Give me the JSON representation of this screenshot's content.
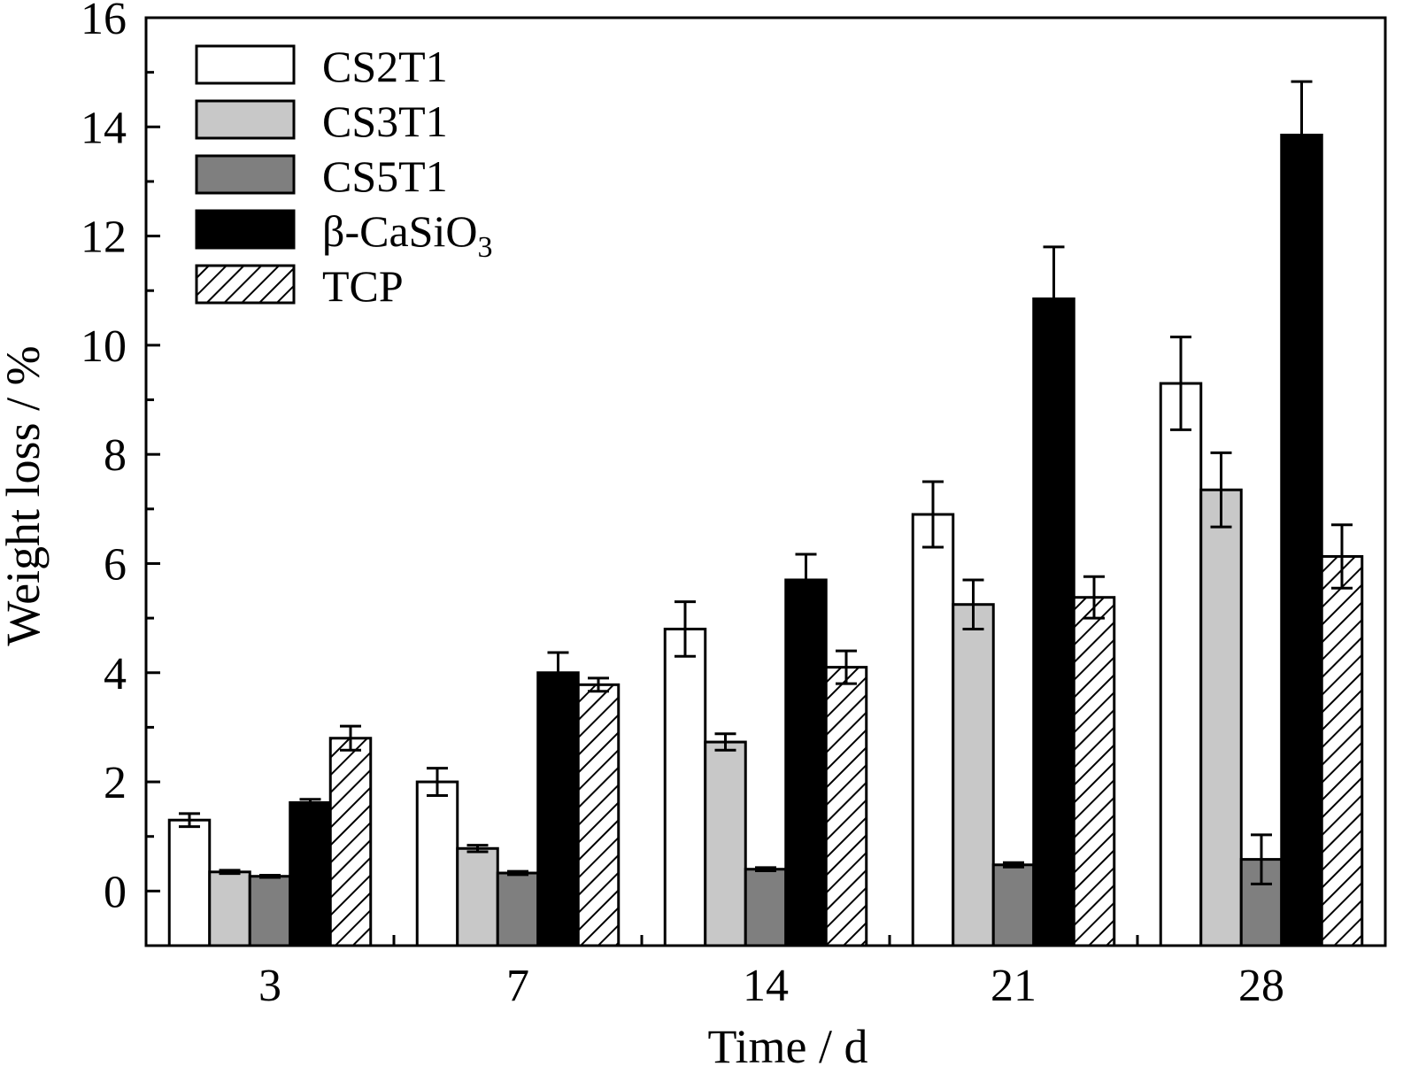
{
  "chart_data": {
    "type": "bar",
    "xlabel": "Time / d",
    "ylabel": "Weight loss / %",
    "ylim": [
      -1,
      16
    ],
    "yticks": [
      0,
      2,
      4,
      6,
      8,
      10,
      12,
      14,
      16
    ],
    "yminor": [
      -1,
      1,
      3,
      5,
      7,
      9,
      11,
      13,
      15
    ],
    "categories": [
      "3",
      "7",
      "14",
      "21",
      "28"
    ],
    "legend_position": "top-left",
    "series": [
      {
        "name": "CS2T1",
        "fill": "#ffffff",
        "pattern": "none",
        "values": [
          1.3,
          2.0,
          4.8,
          6.9,
          9.3
        ],
        "errors": [
          0.12,
          0.25,
          0.5,
          0.6,
          0.85
        ]
      },
      {
        "name": "CS3T1",
        "fill": "#c8c8c8",
        "pattern": "none",
        "values": [
          0.35,
          0.78,
          2.73,
          5.25,
          7.35
        ],
        "errors": [
          0.03,
          0.06,
          0.15,
          0.45,
          0.68
        ]
      },
      {
        "name": "CS5T1",
        "fill": "#7f7f7f",
        "pattern": "none",
        "values": [
          0.27,
          0.33,
          0.4,
          0.48,
          0.58
        ],
        "errors": [
          0.02,
          0.03,
          0.03,
          0.04,
          0.45
        ]
      },
      {
        "name": "β-CaSiO",
        "subscript": "3",
        "fill": "#000000",
        "pattern": "none",
        "values": [
          1.62,
          4.0,
          5.7,
          10.85,
          13.85
        ],
        "errors": [
          0.06,
          0.37,
          0.47,
          0.95,
          0.98
        ]
      },
      {
        "name": "TCP",
        "fill": "#ffffff",
        "pattern": "hatch",
        "values": [
          2.8,
          3.78,
          4.1,
          5.38,
          6.13
        ],
        "errors": [
          0.22,
          0.12,
          0.3,
          0.38,
          0.58
        ]
      }
    ]
  }
}
